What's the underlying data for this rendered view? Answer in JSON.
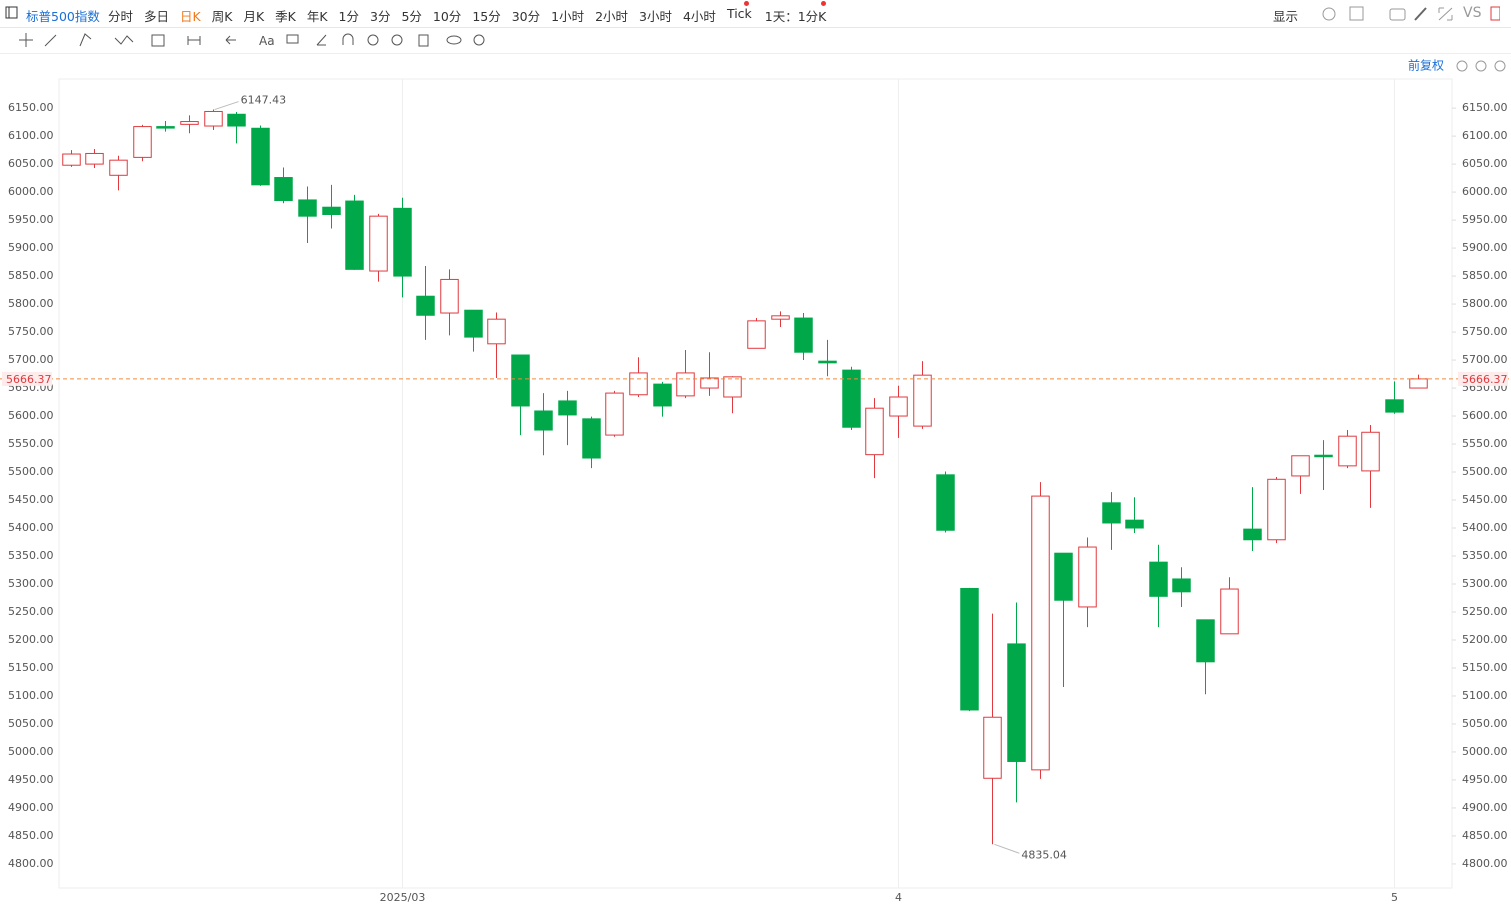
{
  "toolbar": {
    "symbol": "标普500指数",
    "periods": [
      "分时",
      "多日",
      "日K",
      "周K",
      "月K",
      "季K",
      "年K",
      "1分",
      "3分",
      "5分",
      "10分",
      "15分",
      "30分",
      "1小时",
      "2小时",
      "3小时",
      "4小时",
      "Tick"
    ],
    "active_period": 2,
    "range": "1天：1分K",
    "display": "显示",
    "compare": "VS",
    "adjust": "前复权"
  },
  "chart_data": {
    "type": "candlestick",
    "categories": [
      null,
      null,
      null,
      null,
      null,
      null,
      null,
      null,
      null,
      null,
      null,
      null,
      null,
      null,
      "2025/03",
      null,
      null,
      null,
      null,
      null,
      null,
      null,
      null,
      null,
      null,
      null,
      null,
      null,
      null,
      null,
      null,
      null,
      null,
      null,
      null,
      "4",
      null,
      null,
      null,
      null,
      null,
      null,
      null,
      null,
      null,
      null,
      null,
      null,
      null,
      null,
      null,
      null,
      null,
      null,
      null,
      null,
      "5",
      null
    ],
    "open": [
      6048,
      6050,
      6030,
      6062,
      6117,
      6121,
      6118,
      6139,
      6114,
      6026,
      5986,
      5973,
      5984,
      5859,
      5971,
      5814,
      5784,
      5789,
      5729,
      5709,
      5609,
      5627,
      5595,
      5566,
      5638,
      5657,
      5636,
      5650,
      5634,
      5721,
      5773,
      5775,
      5698,
      5682,
      5531,
      5600,
      5582,
      5495,
      5292,
      4953,
      5193,
      4968,
      5355,
      5259,
      5445,
      5414,
      5339,
      5309,
      5236,
      5211,
      5398,
      5379,
      5493,
      5530,
      5511,
      5502,
      5629,
      5650
    ],
    "high": [
      6075,
      6077,
      6065,
      6120,
      6127,
      6137,
      6147.43,
      6143,
      6119,
      6044,
      6010,
      6013,
      5995,
      5961,
      5990,
      5868,
      5862,
      5789,
      5785,
      5709,
      5641,
      5645,
      5599,
      5645,
      5705,
      5661,
      5718,
      5714,
      5671,
      5775,
      5787,
      5784,
      5736,
      5688,
      5632,
      5654,
      5698,
      5501,
      5293,
      5247,
      5267,
      5482,
      5355,
      5383,
      5464,
      5455,
      5370,
      5330,
      5236,
      5312,
      5473,
      5491,
      5529,
      5557,
      5575,
      5584,
      5662,
      5674
    ],
    "low": [
      6045,
      6043,
      6003,
      6055,
      6108,
      6105,
      6111,
      6087,
      6011,
      5980,
      5909,
      5935,
      5861,
      5840,
      5812,
      5736,
      5744,
      5715,
      5668,
      5566,
      5530,
      5548,
      5507,
      5563,
      5634,
      5599,
      5632,
      5636,
      5605,
      5721,
      5759,
      5700,
      5671,
      5575,
      5489,
      5561,
      5577,
      5392,
      5073,
      4835.04,
      4910,
      4952,
      5116,
      5223,
      5361,
      5391,
      5223,
      5259,
      5103,
      5211,
      5359,
      5373,
      5461,
      5468,
      5507,
      5436,
      5604,
      5650
    ],
    "close": [
      6068,
      6069,
      6057,
      6117,
      6115,
      6126,
      6144,
      6118,
      6013,
      5985,
      5957,
      5960,
      5862,
      5957,
      5850,
      5780,
      5844,
      5741,
      5773,
      5618,
      5575,
      5602,
      5525,
      5641,
      5677,
      5618,
      5677,
      5668,
      5670,
      5770,
      5779,
      5714,
      5695,
      5580,
      5614,
      5634,
      5673,
      5396,
      5075,
      5062,
      4983,
      5457,
      5271,
      5366,
      5409,
      5400,
      5278,
      5286,
      5161,
      5291,
      5379,
      5487,
      5529,
      5528,
      5564,
      5571,
      5607,
      5666.37
    ],
    "up_color": "#e0393e",
    "down_color": "#00a84a",
    "price_line_color": "#f08a3c",
    "ylim": [
      4757,
      6202
    ],
    "yticks": [
      {
        "value": 4800,
        "label": "4800.00"
      },
      {
        "value": 4850,
        "label": "4850.00"
      },
      {
        "value": 4900,
        "label": "4900.00"
      },
      {
        "value": 4950,
        "label": "4950.00"
      },
      {
        "value": 5000,
        "label": "5000.00"
      },
      {
        "value": 5050,
        "label": "5050.00"
      },
      {
        "value": 5100,
        "label": "5100.00"
      },
      {
        "value": 5150,
        "label": "5150.00"
      },
      {
        "value": 5200,
        "label": "5200.00"
      },
      {
        "value": 5250,
        "label": "5250.00"
      },
      {
        "value": 5300,
        "label": "5300.00"
      },
      {
        "value": 5350,
        "label": "5350.00"
      },
      {
        "value": 5400,
        "label": "5400.00"
      },
      {
        "value": 5450,
        "label": "5450.00"
      },
      {
        "value": 5500,
        "label": "5500.00"
      },
      {
        "value": 5550,
        "label": "5550.00"
      },
      {
        "value": 5600,
        "label": "5600.00"
      },
      {
        "value": 5650,
        "label": "5650.00"
      },
      {
        "value": 5700,
        "label": "5700.00"
      },
      {
        "value": 5750,
        "label": "5750.00"
      },
      {
        "value": 5800,
        "label": "5800.00"
      },
      {
        "value": 5850,
        "label": "5850.00"
      },
      {
        "value": 5900,
        "label": "5900.00"
      },
      {
        "value": 5950,
        "label": "5950.00"
      },
      {
        "value": 6000,
        "label": "6000.00"
      },
      {
        "value": 6050,
        "label": "6050.00"
      },
      {
        "value": 6100,
        "label": "6100.00"
      },
      {
        "value": 6150,
        "label": "6150.00"
      }
    ],
    "grid": "x"
  }
}
